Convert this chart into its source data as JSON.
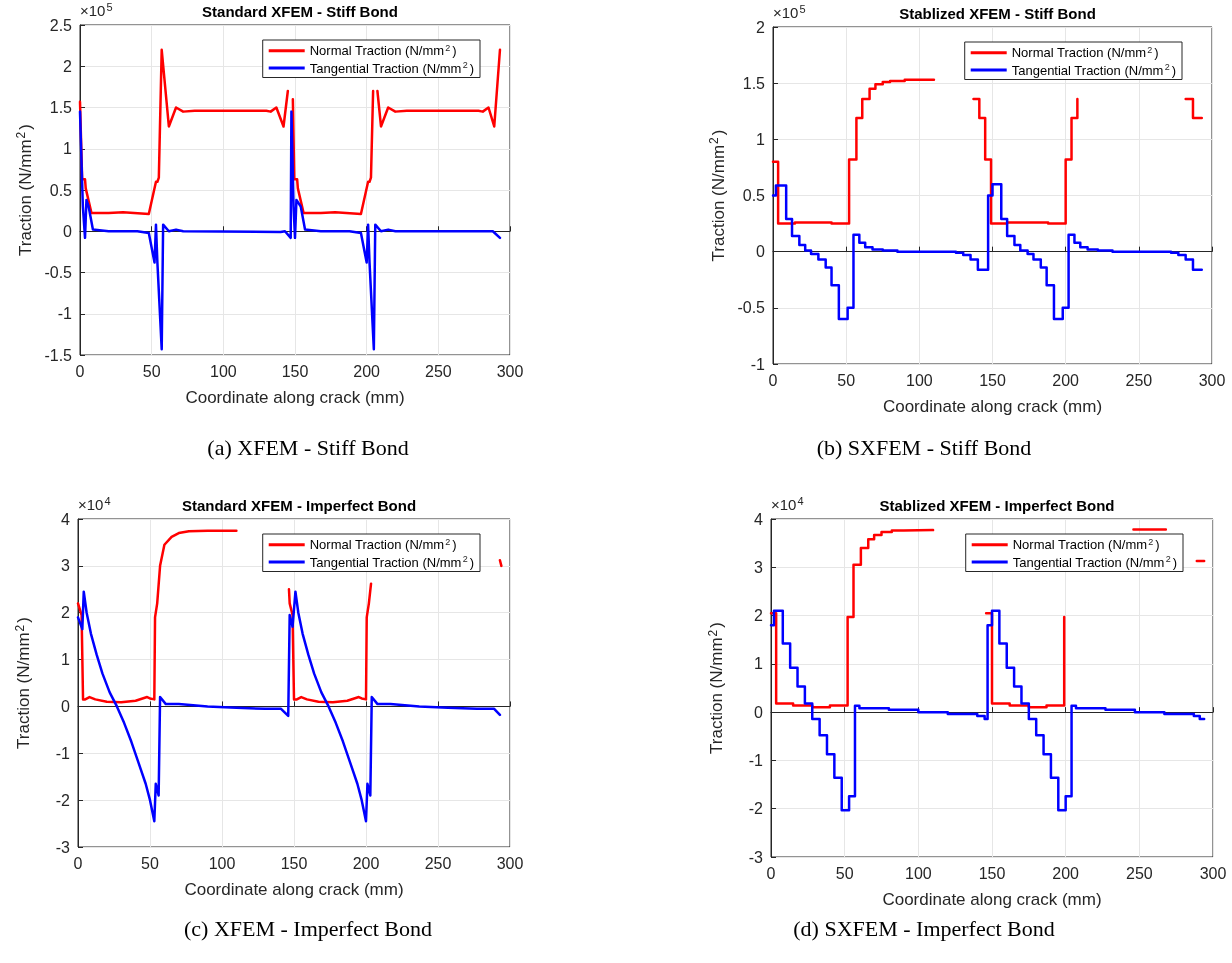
{
  "chart_data": [
    {
      "type": "line",
      "title": "Standard XFEM - Stiff Bond",
      "xlabel": "Coordinate along crack (mm)",
      "ylabel": "Traction (N/mm$^{2}$)",
      "xlim": [
        0,
        300
      ],
      "xticks": [
        0,
        50,
        100,
        150,
        200,
        250,
        300
      ],
      "ylim": [
        -1.5,
        2.5
      ],
      "yticks": [
        -1.5,
        -1,
        -0.5,
        0,
        0.5,
        1,
        1.5,
        2,
        2.5
      ],
      "grid": true,
      "legend": "top right",
      "annotations": [
        "×10$^{5}$",
        "(a) XFEM - Stiff Bond"
      ],
      "series": [
        {
          "name": "Normal Traction (N/mm$^{2}$)",
          "color": "#ff0000",
          "x": [
            0,
            1.5,
            3.5,
            4,
            8,
            20,
            30,
            48,
            53,
            54,
            55,
            57,
            62,
            67,
            72,
            80,
            130,
            133,
            137,
            142,
            145,
            146,
            148.5,
            149.5,
            151.5,
            152,
            156,
            168,
            178,
            196,
            201,
            202,
            203,
            204.5,
            205,
            207.5,
            210,
            215,
            220,
            228,
            278,
            281,
            285,
            289,
            293
          ],
          "values": [
            1.57,
            0.63,
            0.63,
            0.52,
            0.22,
            0.22,
            0.23,
            0.21,
            0.6,
            0.6,
            0.65,
            2.2,
            1.27,
            1.5,
            1.45,
            1.46,
            1.46,
            1.45,
            1.5,
            1.27,
            1.7,
            null,
            1.6,
            0.63,
            0.63,
            0.52,
            0.22,
            0.22,
            0.23,
            0.21,
            0.6,
            0.6,
            0.65,
            1.7,
            null,
            1.7,
            1.27,
            1.5,
            1.45,
            1.46,
            1.46,
            1.45,
            1.5,
            1.27,
            2.2
          ]
        },
        {
          "name": "Tangential Traction (N/mm$^{2}$)",
          "color": "#0000ff",
          "x": [
            0,
            2,
            3.5,
            4.5,
            6,
            9,
            20,
            40,
            48,
            52,
            53,
            54,
            57,
            58,
            62,
            67,
            72,
            140,
            143,
            147,
            147.5,
            149,
            150,
            151,
            154,
            157,
            168,
            188,
            196,
            200,
            201,
            202,
            205,
            206,
            210,
            215,
            220,
            280,
            288,
            293
          ],
          "values": [
            1.45,
            0.3,
            -0.08,
            0.38,
            0.3,
            0.02,
            0,
            0,
            -0.02,
            -0.38,
            0.08,
            -0.38,
            -1.43,
            0.08,
            0,
            0.02,
            0,
            -0.01,
            0,
            -0.08,
            1.45,
            0.3,
            -0.08,
            0.38,
            0.3,
            0.02,
            0,
            0,
            -0.02,
            -0.38,
            0.08,
            -0.38,
            -1.43,
            0.08,
            0,
            0.02,
            0,
            0,
            0,
            -0.08
          ]
        }
      ]
    },
    {
      "type": "step",
      "title": "Stablized XFEM - Stiff Bond",
      "xlabel": "Coordinate along crack (mm)",
      "ylabel": "Traction (N/mm$^{2}$)",
      "xlim": [
        0,
        300
      ],
      "xticks": [
        0,
        50,
        100,
        150,
        200,
        250,
        300
      ],
      "ylim": [
        -1,
        2
      ],
      "yticks": [
        -1,
        -0.5,
        0,
        0.5,
        1,
        1.5,
        2
      ],
      "grid": true,
      "legend": "top right",
      "annotations": [
        "×10$^{5}$",
        "(b) SXFEM - Stiff Bond"
      ],
      "series": [
        {
          "name": "Normal Traction (N/mm$^{2}$)",
          "color": "#ff0000",
          "x": [
            0,
            3.5,
            15,
            40,
            52,
            57,
            61,
            66,
            70,
            75,
            80,
            90,
            110,
            111,
            137,
            141,
            145,
            149,
            160,
            188,
            200,
            204,
            208,
            213,
            282,
            287,
            293
          ],
          "values": [
            0.8,
            0.25,
            0.26,
            0.25,
            0.82,
            1.19,
            1.36,
            1.45,
            1.49,
            1.51,
            1.52,
            1.53,
            1.53,
            null,
            1.36,
            1.19,
            0.82,
            0.25,
            0.26,
            0.25,
            0.82,
            1.19,
            1.36,
            null,
            1.36,
            1.19,
            1.19
          ]
        },
        {
          "name": "Tangential Traction (N/mm$^{2}$)",
          "color": "#0000ff",
          "x": [
            0,
            2,
            9,
            13,
            18,
            22,
            26,
            31,
            36,
            40,
            45,
            51,
            55,
            59,
            63,
            68,
            75,
            85,
            125,
            130,
            135,
            140,
            147,
            150,
            156,
            160,
            165,
            169,
            174,
            178,
            183,
            187,
            192,
            198,
            202,
            206,
            210,
            215,
            222,
            232,
            272,
            277,
            282,
            287,
            293
          ],
          "values": [
            0.5,
            0.59,
            0.29,
            0.14,
            0.06,
            0.01,
            -0.02,
            -0.07,
            -0.14,
            -0.3,
            -0.6,
            -0.5,
            0.15,
            0.08,
            0.04,
            0.02,
            0.01,
            0,
            -0.01,
            -0.03,
            -0.07,
            -0.16,
            0.5,
            0.6,
            0.29,
            0.14,
            0.06,
            0.01,
            -0.02,
            -0.07,
            -0.14,
            -0.3,
            -0.6,
            -0.5,
            0.15,
            0.08,
            0.04,
            0.02,
            0.01,
            0,
            -0.01,
            -0.03,
            -0.07,
            -0.16,
            -0.16
          ]
        }
      ]
    },
    {
      "type": "line",
      "title": "Standard XFEM - Imperfect Bond",
      "xlabel": "Coordinate along crack (mm)",
      "ylabel": "Traction (N/mm$^{2}$)",
      "xlim": [
        0,
        300
      ],
      "xticks": [
        0,
        50,
        100,
        150,
        200,
        250,
        300
      ],
      "ylim": [
        -3,
        4
      ],
      "yticks": [
        -3,
        -2,
        -1,
        0,
        1,
        2,
        3,
        4
      ],
      "grid": true,
      "legend": "top right",
      "annotations": [
        "×10$^{4}$",
        "(c) XFEM - Imperfect Bond"
      ],
      "series": [
        {
          "name": "Normal Traction (N/mm$^{2}$)",
          "color": "#ff0000",
          "x": [
            0,
            2.5,
            3.5,
            5,
            8,
            12,
            20,
            30,
            40,
            48,
            50,
            53,
            53.5,
            55,
            57,
            60,
            65,
            70,
            77,
            90,
            110,
            111,
            146.5,
            147,
            149,
            150,
            152,
            155,
            159,
            167,
            177,
            187,
            195,
            197,
            200,
            200.5,
            202,
            203.5,
            204,
            293,
            294
          ],
          "values": [
            2.2,
            1.95,
            0.15,
            0.15,
            0.2,
            0.15,
            0.1,
            0.09,
            0.12,
            0.2,
            0.17,
            0.15,
            1.9,
            2.2,
            3.0,
            3.45,
            3.62,
            3.7,
            3.74,
            3.75,
            3.75,
            null,
            2.5,
            2.2,
            1.95,
            0.15,
            0.15,
            0.2,
            0.15,
            0.1,
            0.09,
            0.12,
            0.2,
            0.17,
            0.15,
            1.9,
            2.2,
            2.62,
            null,
            3.12,
            3.0
          ]
        },
        {
          "name": "Tangential Traction (N/mm$^{2}$)",
          "color": "#0000ff",
          "x": [
            0,
            3,
            4,
            6,
            9,
            13,
            17,
            22,
            27,
            32,
            37,
            42,
            47,
            50,
            53,
            54,
            56,
            57,
            61,
            70,
            90,
            110,
            130,
            141,
            146,
            147,
            149,
            151,
            153,
            156,
            160,
            164,
            169,
            174,
            179,
            184,
            189,
            194,
            197,
            200,
            201,
            203,
            204,
            208,
            217,
            237,
            257,
            277,
            289,
            293
          ],
          "values": [
            1.9,
            1.65,
            2.45,
            2.0,
            1.55,
            1.1,
            0.7,
            0.3,
            0,
            -0.35,
            -0.75,
            -1.2,
            -1.65,
            -2.0,
            -2.45,
            -1.65,
            -1.9,
            0.2,
            0.05,
            0.05,
            0,
            -0.03,
            -0.05,
            -0.05,
            -0.2,
            1.95,
            1.7,
            2.45,
            2.0,
            1.55,
            1.1,
            0.7,
            0.3,
            0,
            -0.35,
            -0.75,
            -1.2,
            -1.65,
            -2.0,
            -2.45,
            -1.65,
            -1.9,
            0.2,
            0.05,
            0.05,
            0,
            -0.03,
            -0.05,
            -0.05,
            -0.18
          ]
        }
      ]
    },
    {
      "type": "step",
      "title": "Stablized XFEM - Imperfect Bond",
      "xlabel": "Coordinate along crack (mm)",
      "ylabel": "Traction (N/mm$^{2}$)",
      "xlim": [
        0,
        300
      ],
      "xticks": [
        0,
        50,
        100,
        150,
        200,
        250,
        300
      ],
      "ylim": [
        -3,
        4
      ],
      "yticks": [
        -3,
        -2,
        -1,
        0,
        1,
        2,
        3,
        4
      ],
      "grid": true,
      "legend": "top right",
      "annotations": [
        "×10$^{4}$",
        "(d) SXFEM - Imperfect Bond"
      ],
      "series": [
        {
          "name": "Normal Traction (N/mm$^{2}$)",
          "color": "#ff0000",
          "x": [
            0,
            3.5,
            15,
            28,
            40,
            52,
            56,
            61,
            66,
            70,
            75,
            82,
            90,
            110,
            111,
            146,
            150,
            162,
            175,
            187,
            199,
            203,
            246,
            268,
            269,
            289,
            294
          ],
          "values": [
            2.05,
            0.18,
            0.14,
            0.1,
            0.14,
            1.97,
            3.05,
            3.4,
            3.58,
            3.67,
            3.73,
            3.76,
            3.77,
            3.77,
            null,
            2.05,
            0.18,
            0.14,
            0.1,
            0.14,
            1.97,
            null,
            3.78,
            3.78,
            null,
            3.13,
            3.13
          ]
        },
        {
          "name": "Tangential Traction (N/mm$^{2}$)",
          "color": "#0000ff",
          "x": [
            0,
            2,
            8,
            13,
            18,
            23,
            28,
            33,
            38,
            43,
            48,
            53,
            57,
            60,
            80,
            100,
            120,
            140,
            145,
            147,
            150,
            155,
            160,
            165,
            170,
            175,
            180,
            185,
            190,
            195,
            200,
            204,
            207,
            227,
            247,
            267,
            287,
            291,
            294
          ],
          "values": [
            1.8,
            2.1,
            1.42,
            0.92,
            0.53,
            0.18,
            -0.14,
            -0.48,
            -0.87,
            -1.36,
            -2.03,
            -1.74,
            0.13,
            0.08,
            0.05,
            0,
            -0.04,
            -0.08,
            -0.14,
            1.8,
            2.1,
            1.42,
            0.92,
            0.53,
            0.18,
            -0.14,
            -0.48,
            -0.87,
            -1.36,
            -2.03,
            -1.74,
            0.13,
            0.08,
            0.05,
            0,
            -0.04,
            -0.08,
            -0.14,
            -0.14
          ]
        }
      ]
    }
  ]
}
